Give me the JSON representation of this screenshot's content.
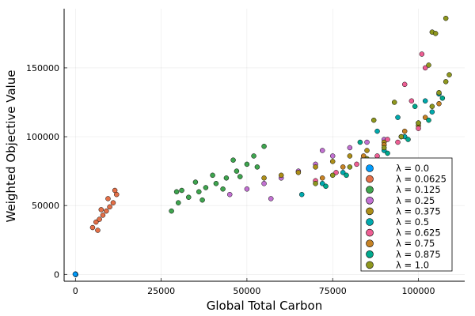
{
  "chart_data": {
    "type": "scatter",
    "xlabel": "Global Total Carbon",
    "ylabel": "Weighted Objective Value",
    "xlim": [
      -3300,
      113500
    ],
    "ylim": [
      -5000,
      193000
    ],
    "x_ticks": [
      {
        "value": 0,
        "label": "0"
      },
      {
        "value": 25000,
        "label": "25000"
      },
      {
        "value": 50000,
        "label": "50000"
      },
      {
        "value": 75000,
        "label": "75000"
      },
      {
        "value": 100000,
        "label": "100000"
      }
    ],
    "y_ticks": [
      {
        "value": 0,
        "label": "0"
      },
      {
        "value": 50000,
        "label": "50000"
      },
      {
        "value": 100000,
        "label": "100000"
      },
      {
        "value": 150000,
        "label": "150000"
      }
    ],
    "grid": true,
    "legend_position": "bottom-right",
    "series": [
      {
        "name": "λ = 0.0",
        "color": "#009AFA",
        "points": [
          [
            0,
            0
          ],
          [
            0,
            300
          ],
          [
            80,
            -200
          ],
          [
            -80,
            150
          ]
        ]
      },
      {
        "name": "λ = 0.0625",
        "color": "#E36F47",
        "points": [
          [
            5000,
            34000
          ],
          [
            6000,
            38000
          ],
          [
            7000,
            40000
          ],
          [
            8000,
            43000
          ],
          [
            9000,
            46000
          ],
          [
            10000,
            49000
          ],
          [
            11000,
            52000
          ],
          [
            12000,
            58000
          ],
          [
            6500,
            32000
          ],
          [
            9500,
            55000
          ],
          [
            11500,
            61000
          ],
          [
            7500,
            47000
          ]
        ]
      },
      {
        "name": "λ = 0.125",
        "color": "#3EA44E",
        "points": [
          [
            28000,
            46000
          ],
          [
            30000,
            52000
          ],
          [
            33000,
            56000
          ],
          [
            36000,
            60000
          ],
          [
            38000,
            63000
          ],
          [
            41000,
            66000
          ],
          [
            44000,
            70000
          ],
          [
            47000,
            75000
          ],
          [
            50000,
            80000
          ],
          [
            52000,
            86000
          ],
          [
            55000,
            93000
          ],
          [
            37000,
            54000
          ],
          [
            43000,
            62000
          ],
          [
            48000,
            71000
          ],
          [
            53000,
            78000
          ],
          [
            40000,
            72000
          ],
          [
            46000,
            83000
          ],
          [
            35000,
            67000
          ],
          [
            31000,
            61000
          ],
          [
            29500,
            60000
          ]
        ]
      },
      {
        "name": "λ = 0.25",
        "color": "#C271D2",
        "points": [
          [
            45000,
            58000
          ],
          [
            50000,
            62000
          ],
          [
            55000,
            66000
          ],
          [
            60000,
            70000
          ],
          [
            65000,
            75000
          ],
          [
            70000,
            80000
          ],
          [
            75000,
            86000
          ],
          [
            80000,
            92000
          ],
          [
            85000,
            96000
          ],
          [
            57000,
            55000
          ],
          [
            72000,
            90000
          ],
          [
            90000,
            98000
          ]
        ]
      },
      {
        "name": "λ = 0.375",
        "color": "#AC8E18",
        "points": [
          [
            55000,
            70000
          ],
          [
            60000,
            72000
          ],
          [
            65000,
            74000
          ],
          [
            70000,
            78000
          ],
          [
            75000,
            82000
          ],
          [
            80000,
            86000
          ],
          [
            85000,
            90000
          ],
          [
            90000,
            96000
          ],
          [
            95000,
            100000
          ],
          [
            100000,
            108000
          ]
        ]
      },
      {
        "name": "λ = 0.5",
        "color": "#00A9AD",
        "points": [
          [
            66000,
            58000
          ],
          [
            72000,
            66000
          ],
          [
            78000,
            74000
          ],
          [
            84000,
            82000
          ],
          [
            90000,
            90000
          ],
          [
            96000,
            100000
          ],
          [
            100000,
            110000
          ],
          [
            104000,
            118000
          ],
          [
            88000,
            104000
          ],
          [
            94000,
            114000
          ],
          [
            102000,
            126000
          ],
          [
            106000,
            131000
          ]
        ]
      },
      {
        "name": "λ = 0.625",
        "color": "#ED5E93",
        "points": [
          [
            70000,
            68000
          ],
          [
            76000,
            74000
          ],
          [
            82000,
            80000
          ],
          [
            88000,
            86000
          ],
          [
            94000,
            96000
          ],
          [
            100000,
            106000
          ],
          [
            98000,
            126000
          ],
          [
            101000,
            160000
          ],
          [
            102000,
            150000
          ],
          [
            96000,
            138000
          ],
          [
            91000,
            98000
          ]
        ]
      },
      {
        "name": "λ = 0.75",
        "color": "#C68225",
        "points": [
          [
            72000,
            70000
          ],
          [
            78000,
            78000
          ],
          [
            84000,
            86000
          ],
          [
            90000,
            94000
          ],
          [
            96000,
            104000
          ],
          [
            102000,
            114000
          ],
          [
            106000,
            124000
          ]
        ]
      },
      {
        "name": "λ = 0.875",
        "color": "#00A98D",
        "points": [
          [
            73000,
            64000
          ],
          [
            79000,
            72000
          ],
          [
            85000,
            80000
          ],
          [
            91000,
            88000
          ],
          [
            97000,
            98000
          ],
          [
            103000,
            112000
          ],
          [
            107000,
            128000
          ],
          [
            83000,
            96000
          ],
          [
            99000,
            122000
          ]
        ]
      },
      {
        "name": "λ = 1.0",
        "color": "#8E971E",
        "points": [
          [
            70000,
            66000
          ],
          [
            75000,
            72000
          ],
          [
            80000,
            78000
          ],
          [
            85000,
            84000
          ],
          [
            90000,
            92000
          ],
          [
            95000,
            100000
          ],
          [
            100000,
            110000
          ],
          [
            104000,
            122000
          ],
          [
            106000,
            132000
          ],
          [
            108000,
            140000
          ],
          [
            109000,
            145000
          ],
          [
            103000,
            152000
          ],
          [
            104000,
            176000
          ],
          [
            105000,
            175000
          ],
          [
            108000,
            186000
          ],
          [
            93000,
            125000
          ],
          [
            87000,
            112000
          ]
        ]
      }
    ]
  }
}
